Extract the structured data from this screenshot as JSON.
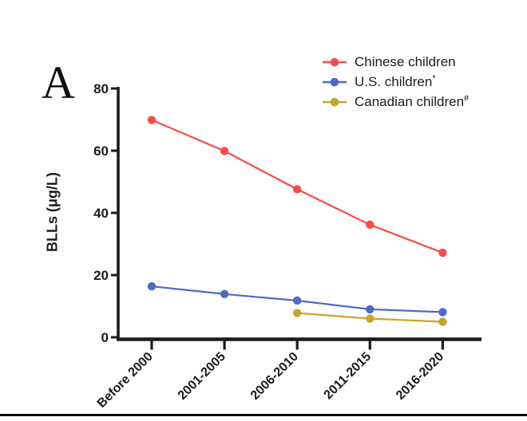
{
  "panel_label": "A",
  "legend": {
    "entries": [
      {
        "label": "Chinese children",
        "superscript": ""
      },
      {
        "label": "U.S. children",
        "superscript": "*"
      },
      {
        "label": "Canadian children",
        "superscript": "#"
      }
    ]
  },
  "chart_data": {
    "type": "line",
    "title": "",
    "categories": [
      "Before 2000",
      "2001-2005",
      "2006-2010",
      "2011-2015",
      "2016-2020"
    ],
    "series": [
      {
        "name": "Chinese children",
        "color": "#f84b4b",
        "values": [
          69.9,
          59.9,
          47.6,
          36.2,
          27.2
        ]
      },
      {
        "name": "U.S. children",
        "color": "#4e69c8",
        "values": [
          16.4,
          13.9,
          11.8,
          9.0,
          8.1
        ]
      },
      {
        "name": "Canadian children",
        "color": "#c7a42a",
        "values": [
          null,
          null,
          7.8,
          6.0,
          5.0
        ]
      }
    ],
    "xlabel": "",
    "ylabel": "BLLs (μg/L)",
    "ylim": [
      0,
      80
    ],
    "yticks": [
      0,
      20,
      40,
      60,
      80
    ],
    "grid": false,
    "legend_position": "top-right",
    "axis_color": "#1b1b1b"
  }
}
